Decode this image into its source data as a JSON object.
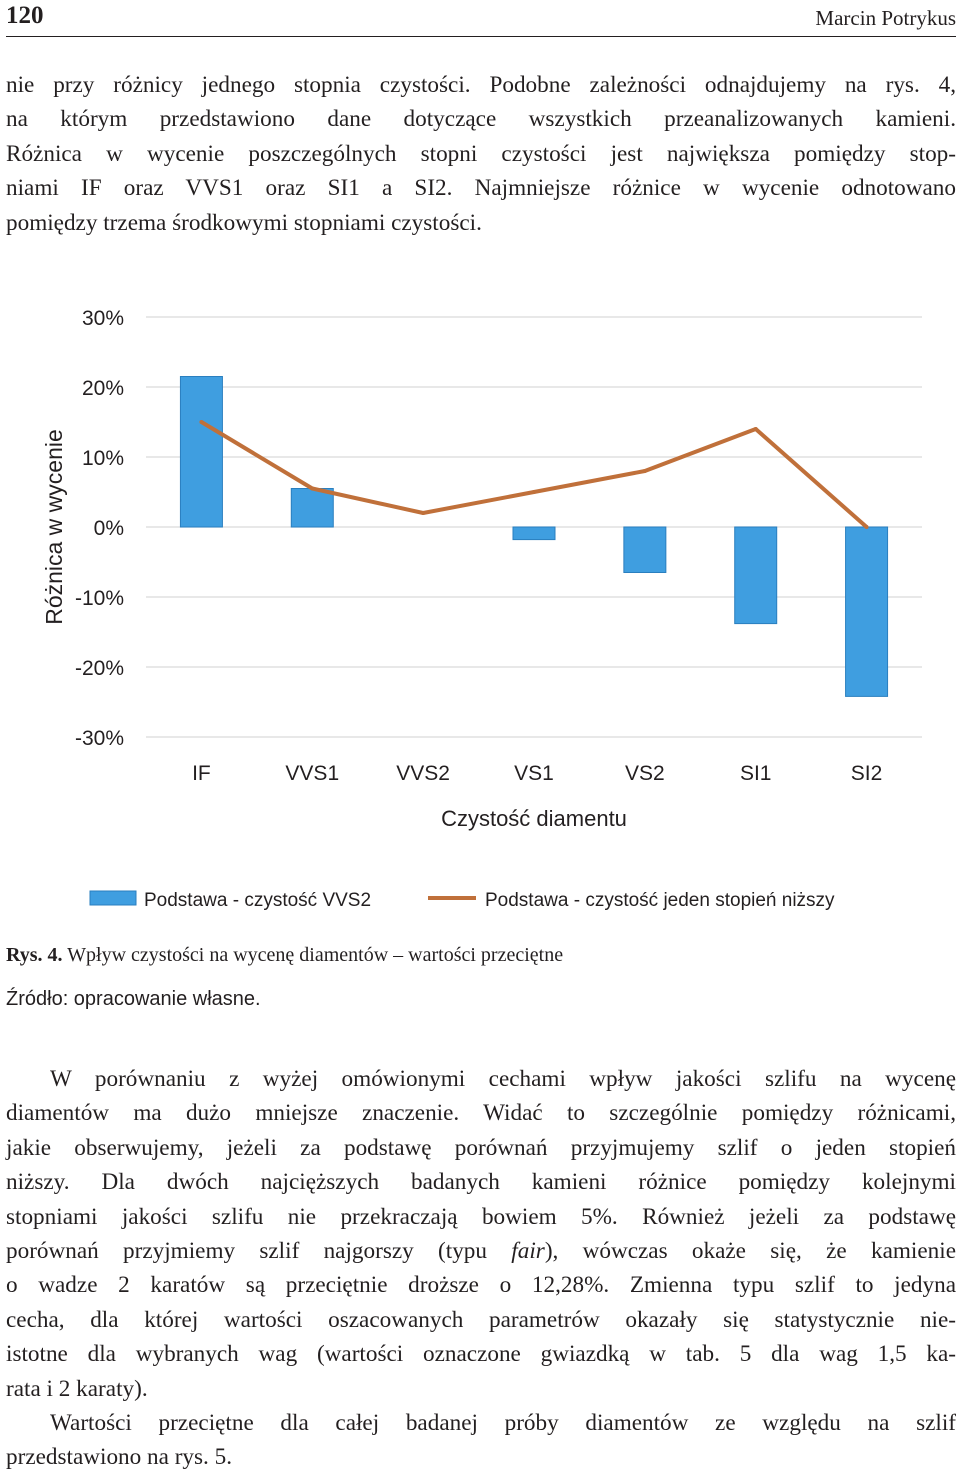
{
  "header": {
    "page_number": "120",
    "author": "Marcin Potrykus"
  },
  "para1": [
    "nie przy różnicy jednego stopnia czystości. Podobne zależności odnajdujemy na rys. 4,",
    "na którym przedstawiono dane dotyczące wszystkich przeanalizowanych kamieni.",
    "Różnica w wycenie poszczególnych stopni czystości jest największa pomiędzy stop-",
    "niami IF oraz VVS1 oraz SI1 a SI2. Najmniejsze różnice w wycenie odnotowano",
    "pomiędzy trzema środkowymi stopniami czystości."
  ],
  "chart_data": {
    "type": "bar",
    "categories": [
      "IF",
      "VVS1",
      "VVS2",
      "VS1",
      "VS2",
      "SI1",
      "SI2"
    ],
    "series": [
      {
        "name": "Podstawa - czystość VVS2",
        "kind": "bar",
        "color": "#3f9ee0",
        "values": [
          21.5,
          5.5,
          0,
          -1.8,
          -6.5,
          -13.8,
          -24.2
        ]
      },
      {
        "name": "Podstawa - czystość jeden stopień niższy",
        "kind": "line",
        "color": "#c0703a",
        "values": [
          15,
          5.5,
          2,
          5,
          8,
          14,
          0
        ]
      }
    ],
    "ylim": [
      -30,
      30
    ],
    "yticks": [
      30,
      20,
      10,
      0,
      -10,
      -20,
      -30
    ],
    "ytick_labels": [
      "30%",
      "20%",
      "10%",
      "0%",
      "-10%",
      "-20%",
      "-30%"
    ],
    "xlabel": "Czystość diamentu",
    "ylabel": "Różnica w wycenie",
    "grid": true,
    "legend_position": "bottom"
  },
  "caption": {
    "label": "Rys. 4.",
    "text": "Wpływ czystości na wycenę diamentów – wartości przeciętne"
  },
  "source": "Źródło: opracowanie własne.",
  "para2": {
    "l1": "W porównaniu z wyżej omówionymi cechami wpływ jakości szlifu na wycenę",
    "l2": "diamentów ma dużo mniejsze znaczenie. Widać to szczególnie pomiędzy różnicami,",
    "l3": "jakie obserwujemy, jeżeli za podstawę porównań przyjmujemy szlif o jeden stopień",
    "l4": "niższy. Dla dwóch najcięższych badanych kamieni różnice pomiędzy kolejnymi",
    "l5": "stopniami jakości szlifu nie przekraczają bowiem 5%. Również jeżeli za podstawę",
    "l6_a": "porównań przyjmiemy szlif najgorszy (typu ",
    "l6_em": "fair",
    "l6_b": "), wówczas okaże się, że kamienie",
    "l7": "o wadze 2 karatów są przeciętnie droższe o 12,28%. Zmienna typu szlif to jedyna",
    "l8": "cecha, dla której wartości oszacowanych parametrów okazały się statystycznie nie-",
    "l9": "istotne dla wybranych wag (wartości oznaczone gwiazdką w tab. 5 dla wag 1,5 ka-",
    "l10": "rata i 2 karaty)."
  },
  "para3": {
    "l1": "Wartości przeciętne dla całej badanej próby diamentów ze względu na szlif",
    "l2": "przedstawiono na rys. 5."
  }
}
